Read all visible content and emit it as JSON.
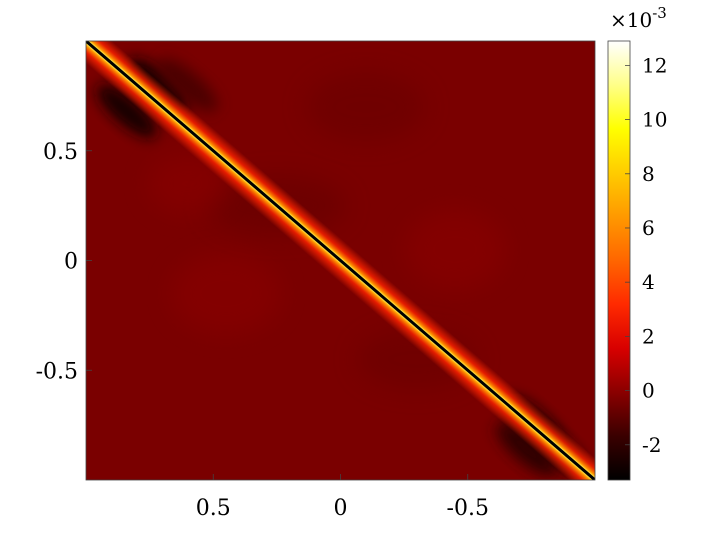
{
  "chart_data": {
    "type": "heatmap",
    "title": "",
    "xlabel": "",
    "ylabel": "",
    "x_ticks": [
      "0.5",
      "0",
      "-0.5"
    ],
    "y_ticks": [
      "0.5",
      "0",
      "-0.5"
    ],
    "x_tick_values": [
      0.5,
      0,
      -0.5
    ],
    "y_tick_values": [
      0.5,
      0,
      -0.5
    ],
    "xlim": [
      1,
      -1
    ],
    "ylim": [
      -1,
      1
    ],
    "colormap": "hot",
    "colorbar": {
      "range": [
        -3.3,
        12.9
      ],
      "ticks": [
        "-2",
        "0",
        "2",
        "4",
        "6",
        "8",
        "10",
        "12"
      ],
      "tick_values": [
        -2,
        0,
        2,
        4,
        6,
        8,
        10,
        12
      ],
      "exponent_label": "×10⁻³",
      "multiplier": "×10",
      "exponent": "-3"
    },
    "overlay": {
      "type": "line",
      "from": [
        1,
        1
      ],
      "to": [
        -1,
        -1
      ],
      "color": "#000000"
    },
    "features": [
      {
        "x": 0.72,
        "y": 0.8,
        "value": -2.8
      },
      {
        "x": 0.84,
        "y": 0.68,
        "value": -2.8
      },
      {
        "x": -0.76,
        "y": -0.74,
        "value": -2.8
      },
      {
        "x": -0.85,
        "y": -0.86,
        "value": -2.5
      },
      {
        "x": -0.73,
        "y": -0.86,
        "value": -2.2
      },
      {
        "x": 0.6,
        "y": 0.8,
        "value": -1.5
      }
    ],
    "background_value": -0.4,
    "diagonal_peak_value": 12.9,
    "grid": false
  }
}
